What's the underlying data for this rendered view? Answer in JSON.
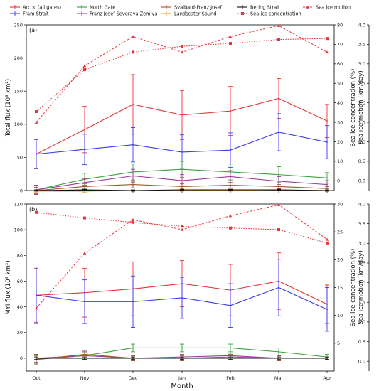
{
  "legend": [
    {
      "key": "arctic",
      "label": "Arctic (all gates)",
      "color": "#e8333a",
      "style": "solid",
      "marker": "none"
    },
    {
      "key": "fram",
      "label": "Fram Strait",
      "color": "#3a3ae8",
      "style": "solid",
      "marker": "none"
    },
    {
      "key": "north",
      "label": "North Gate",
      "color": "#3aa03a",
      "style": "solid",
      "marker": "none"
    },
    {
      "key": "fjsz",
      "label": "Franz Josef-Severaya Zemlya",
      "color": "#9b3a9b",
      "style": "solid",
      "marker": "none"
    },
    {
      "key": "svfj",
      "label": "Svalbard-Franz Josef",
      "color": "#a0522d",
      "style": "solid",
      "marker": "none"
    },
    {
      "key": "landscater",
      "label": "Landscater Sound",
      "color": "#f0a020",
      "style": "solid",
      "marker": "none"
    },
    {
      "key": "bering",
      "label": "Bering Strait",
      "color": "#111111",
      "style": "solid",
      "marker": "none"
    },
    {
      "key": "conc",
      "label": "Sea ice concentration",
      "color": "#e8333a",
      "style": "dotted",
      "marker": "square"
    },
    {
      "key": "motion",
      "label": "Sea ice motion",
      "color": "#e8333a",
      "style": "dashed",
      "marker": "triangle"
    }
  ],
  "x_label": "Month",
  "chart_data": [
    {
      "type": "line",
      "panel": "(a)",
      "categories": [
        "Oct",
        "Nov",
        "Dec",
        "Jan",
        "Feb",
        "Mar",
        "Apr"
      ],
      "ylabel": "Total flux (10³ km²)",
      "ylabel_right_1": "Sea ice concentration (%)",
      "ylabel_right_2": "Sea ice motion (km/day)",
      "ylim": [
        0,
        250
      ],
      "yticks": [
        0,
        50,
        100,
        150,
        200,
        250
      ],
      "y2lim": [
        -5,
        80
      ],
      "y2ticks": [
        0,
        10,
        20,
        30,
        40,
        50,
        60,
        70,
        80
      ],
      "y3lim": [
        -0.25,
        4.0
      ],
      "y3ticks": [
        0.0,
        0.5,
        1.0,
        1.5,
        2.0,
        2.5,
        3.0,
        3.5,
        4.0
      ],
      "series": [
        {
          "key": "arctic",
          "values": [
            55,
            92,
            130,
            114,
            120,
            139,
            105
          ],
          "err": [
            22,
            35,
            45,
            37,
            37,
            30,
            25
          ]
        },
        {
          "key": "fram",
          "values": [
            55,
            62,
            69,
            58,
            61,
            88,
            73
          ],
          "err": [
            22,
            23,
            26,
            26,
            26,
            28,
            25
          ]
        },
        {
          "key": "north",
          "values": [
            1,
            17,
            28,
            32,
            28,
            24,
            19
          ],
          "err": [
            7,
            9,
            12,
            12,
            12,
            12,
            8
          ]
        },
        {
          "key": "fjsz",
          "values": [
            1,
            12,
            22,
            15,
            21,
            14,
            9
          ],
          "err": [
            7,
            6,
            10,
            9,
            9,
            7,
            6
          ]
        },
        {
          "key": "svfj",
          "values": [
            0,
            6,
            9,
            6,
            8,
            6,
            3
          ],
          "err": [
            5,
            4,
            5,
            4,
            4,
            3,
            3
          ]
        },
        {
          "key": "landscater",
          "values": [
            -1,
            -1,
            0,
            0,
            0,
            1,
            0
          ],
          "err": [
            2,
            2,
            1,
            1,
            1,
            1,
            1
          ]
        },
        {
          "key": "bering",
          "values": [
            0,
            1,
            0,
            1,
            1,
            1,
            0
          ],
          "err": [
            1,
            1,
            1,
            1,
            1,
            1,
            1
          ]
        }
      ],
      "concentration": [
        35.5,
        57,
        66,
        69,
        70.5,
        72.5,
        73
      ],
      "motion": [
        1.5,
        2.95,
        3.7,
        3.3,
        3.7,
        3.98,
        3.3
      ]
    },
    {
      "type": "line",
      "panel": "(b)",
      "categories": [
        "Oct",
        "Nov",
        "Dec",
        "Jan",
        "Feb",
        "Mar",
        "Apr"
      ],
      "ylabel": "MYI flux (10³ km²)",
      "ylabel_right_1": "Sea ice concentration (%)",
      "ylabel_right_2": "Sea ice motion (km/day)",
      "ylim": [
        -10,
        120
      ],
      "yticks": [
        0,
        20,
        40,
        60,
        80,
        100,
        120
      ],
      "y2lim": [
        0,
        30
      ],
      "y2ticks": [
        5,
        10,
        15,
        20,
        25,
        30
      ],
      "y3lim": [
        -0.25,
        4.0
      ],
      "y3ticks": [
        0.0,
        0.5,
        1.0,
        1.5,
        2.0,
        2.5,
        3.0,
        3.5,
        4.0
      ],
      "series": [
        {
          "key": "arctic",
          "values": [
            49,
            51,
            54,
            58,
            53,
            60,
            42
          ],
          "err": [
            21,
            19,
            21,
            18,
            20,
            22,
            15
          ]
        },
        {
          "key": "fram",
          "values": [
            49,
            44,
            44,
            47,
            41,
            55,
            38
          ],
          "err": [
            22,
            17,
            20,
            16,
            17,
            22,
            17
          ]
        },
        {
          "key": "north",
          "values": [
            -1,
            2,
            8,
            8,
            8,
            5,
            1
          ],
          "err": [
            3,
            3,
            3,
            3,
            3,
            3,
            2
          ]
        },
        {
          "key": "fjsz",
          "values": [
            0,
            2,
            0,
            1,
            2,
            0,
            0
          ],
          "err": [
            3,
            3,
            2,
            2,
            2,
            2,
            1
          ]
        },
        {
          "key": "svfj",
          "values": [
            -1,
            3,
            0,
            0,
            1,
            0,
            0
          ],
          "err": [
            4,
            3,
            2,
            2,
            2,
            2,
            1
          ]
        },
        {
          "key": "landscater",
          "values": [
            0,
            0,
            0,
            0,
            0,
            0,
            0
          ],
          "err": [
            1,
            1,
            1,
            1,
            1,
            1,
            1
          ]
        },
        {
          "key": "bering",
          "values": [
            0,
            0,
            0,
            0,
            0,
            0,
            0
          ],
          "err": [
            1,
            1,
            1,
            1,
            1,
            1,
            1
          ]
        }
      ],
      "concentration": [
        28.5,
        27.5,
        26.7,
        26,
        25.7,
        25.4,
        23
      ],
      "motion": [
        1.35,
        2.75,
        3.6,
        3.35,
        3.7,
        3.98,
        3.1
      ]
    }
  ]
}
